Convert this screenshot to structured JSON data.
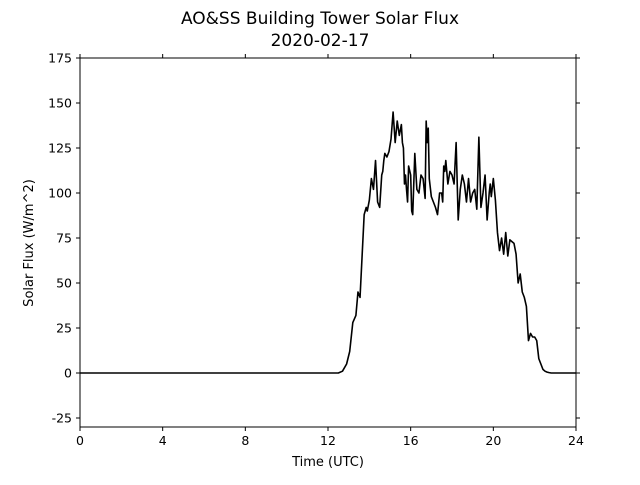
{
  "chart_data": {
    "type": "line",
    "title": "AO&SS Building Tower Solar Flux",
    "subtitle": "2020-02-17",
    "xlabel": "Time (UTC)",
    "ylabel": "Solar Flux (W/m^2)",
    "xlim": [
      0,
      24
    ],
    "ylim": [
      -30,
      175
    ],
    "xticks": [
      0,
      4,
      8,
      12,
      16,
      20,
      24
    ],
    "yticks": [
      -25,
      0,
      25,
      50,
      75,
      100,
      125,
      150,
      175
    ],
    "grid": false,
    "legend": "none",
    "series": [
      {
        "color": "#000000",
        "x": [
          0,
          12.5,
          12.7,
          12.9,
          13.05,
          13.2,
          13.35,
          13.45,
          13.55,
          13.65,
          13.75,
          13.85,
          13.9,
          14.0,
          14.1,
          14.2,
          14.3,
          14.4,
          14.5,
          14.6,
          14.65,
          14.7,
          14.75,
          14.85,
          14.95,
          15.05,
          15.15,
          15.25,
          15.35,
          15.45,
          15.55,
          15.6,
          15.65,
          15.7,
          15.75,
          15.8,
          15.85,
          15.9,
          16.0,
          16.05,
          16.1,
          16.2,
          16.3,
          16.4,
          16.5,
          16.6,
          16.7,
          16.75,
          16.8,
          16.85,
          16.9,
          17.0,
          17.1,
          17.2,
          17.3,
          17.4,
          17.5,
          17.55,
          17.6,
          17.65,
          17.7,
          17.8,
          17.9,
          18.0,
          18.1,
          18.2,
          18.3,
          18.4,
          18.5,
          18.6,
          18.7,
          18.8,
          18.9,
          19.0,
          19.1,
          19.2,
          19.3,
          19.4,
          19.5,
          19.6,
          19.7,
          19.8,
          19.85,
          19.9,
          20.0,
          20.1,
          20.2,
          20.3,
          20.4,
          20.5,
          20.6,
          20.7,
          20.8,
          20.9,
          21.0,
          21.1,
          21.2,
          21.3,
          21.4,
          21.5,
          21.6,
          21.7,
          21.8,
          21.9,
          22.0,
          22.1,
          22.2,
          22.3,
          22.4,
          22.5,
          22.6,
          22.7,
          22.8,
          22.9,
          23.0,
          23.1,
          23.2,
          23.3,
          23.4,
          23.6,
          23.8,
          24.0
        ],
        "y": [
          0,
          0,
          1,
          5,
          12,
          28,
          32,
          45,
          42,
          65,
          88,
          92,
          90,
          96,
          108,
          102,
          118,
          95,
          92,
          110,
          112,
          118,
          122,
          120,
          123,
          130,
          145,
          128,
          140,
          132,
          138,
          128,
          125,
          105,
          110,
          102,
          95,
          115,
          110,
          90,
          88,
          122,
          102,
          100,
          110,
          108,
          97,
          140,
          128,
          136,
          108,
          98,
          95,
          92,
          88,
          100,
          100,
          95,
          115,
          112,
          118,
          105,
          112,
          110,
          105,
          128,
          85,
          102,
          110,
          105,
          95,
          108,
          95,
          100,
          102,
          91,
          131,
          92,
          100,
          110,
          85,
          100,
          105,
          98,
          108,
          96,
          78,
          68,
          75,
          66,
          78,
          65,
          74,
          73,
          72,
          66,
          50,
          55,
          45,
          42,
          37,
          18,
          22,
          20,
          20,
          18,
          8,
          5,
          2,
          1,
          0.5,
          0.2,
          0,
          0,
          0,
          0,
          0,
          0,
          0,
          0,
          0,
          0
        ]
      }
    ]
  }
}
